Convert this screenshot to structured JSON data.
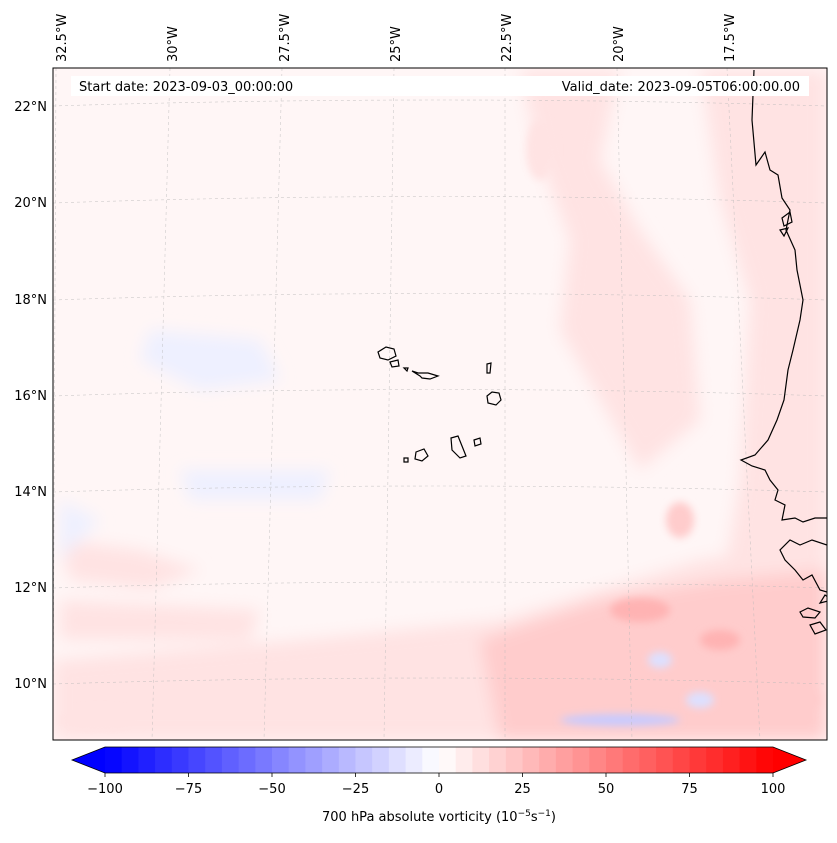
{
  "map": {
    "start_label": "Start date: 2023-09-03_00:00:00",
    "valid_label": "Valid_date: 2023-09-05T06:00:00.00",
    "field_colors": {
      "background": "#fff6f6",
      "light_red": "#ffe3e3",
      "mid_red": "#ffcccc",
      "strong_red": "#ffb3b3",
      "light_blue": "#eef0ff",
      "mid_blue": "#c8cbff",
      "coastline": "#000000"
    },
    "lon_labels": [
      "32.5°W",
      "30°W",
      "27.5°W",
      "25°W",
      "22.5°W",
      "20°W",
      "17.5°W"
    ],
    "lat_labels": [
      "22°N",
      "20°N",
      "18°N",
      "16°N",
      "14°N",
      "12°N",
      "10°N"
    ]
  },
  "colorbar": {
    "min": -100,
    "max": 100,
    "levels": 40,
    "ticks": [
      "−100",
      "−75",
      "−50",
      "−25",
      "0",
      "25",
      "50",
      "75",
      "100"
    ],
    "label": "700 hPa absolute vorticity (10",
    "label_exp1": "−5",
    "label_mid": "s",
    "label_exp2": "−1",
    "label_end": ")",
    "neg_color": "#0000ff",
    "pos_color": "#ff0000"
  }
}
